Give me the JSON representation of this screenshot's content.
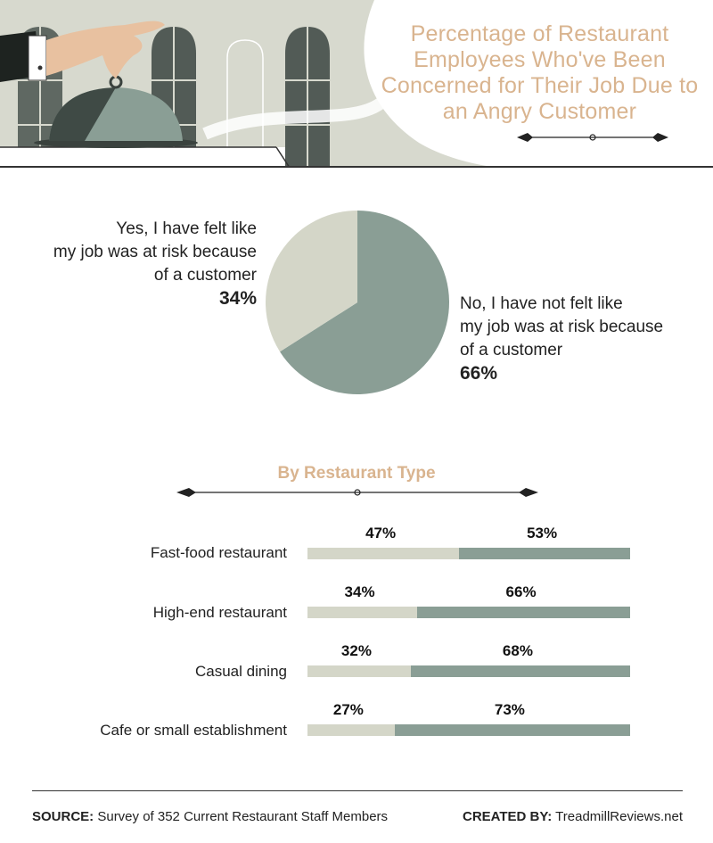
{
  "title": "Percentage of Restaurant Employees Who've Been Concerned for Their Job Due to an Angry Customer",
  "pie": {
    "yes_label": [
      "Yes, I have felt like",
      "my job was at risk because",
      "of a customer"
    ],
    "yes_pct": "34%",
    "no_label": [
      "No, I have not felt like",
      "my job was at risk because",
      "of a customer"
    ],
    "no_pct": "66%"
  },
  "section_title": "By Restaurant Type",
  "footer": {
    "source_label": "SOURCE:",
    "source_text": "Survey of 352 Current Restaurant Staff Members",
    "created_label": "CREATED BY:",
    "created_text": "TreadmillReviews.net"
  },
  "colors": {
    "yes": "#d4d6c8",
    "no": "#8a9e95",
    "accent": "#d9b48f",
    "header_bg": "#d7d9ce"
  },
  "chart_data": [
    {
      "type": "pie",
      "categories": [
        "Yes, I have felt like my job was at risk because of a customer",
        "No, I have not felt like my job was at risk because of a customer"
      ],
      "values": [
        34,
        66
      ]
    },
    {
      "type": "bar",
      "title": "By Restaurant Type",
      "categories": [
        "Fast-food restaurant",
        "High-end restaurant",
        "Casual dining",
        "Cafe or small establishment"
      ],
      "series": [
        {
          "values": [
            47,
            34,
            32,
            27
          ]
        },
        {
          "values": [
            53,
            66,
            68,
            73
          ]
        }
      ],
      "labels_yes": [
        "47%",
        "34%",
        "32%",
        "27%"
      ],
      "labels_no": [
        "53%",
        "66%",
        "68%",
        "73%"
      ],
      "ylim": [
        0,
        100
      ]
    }
  ]
}
